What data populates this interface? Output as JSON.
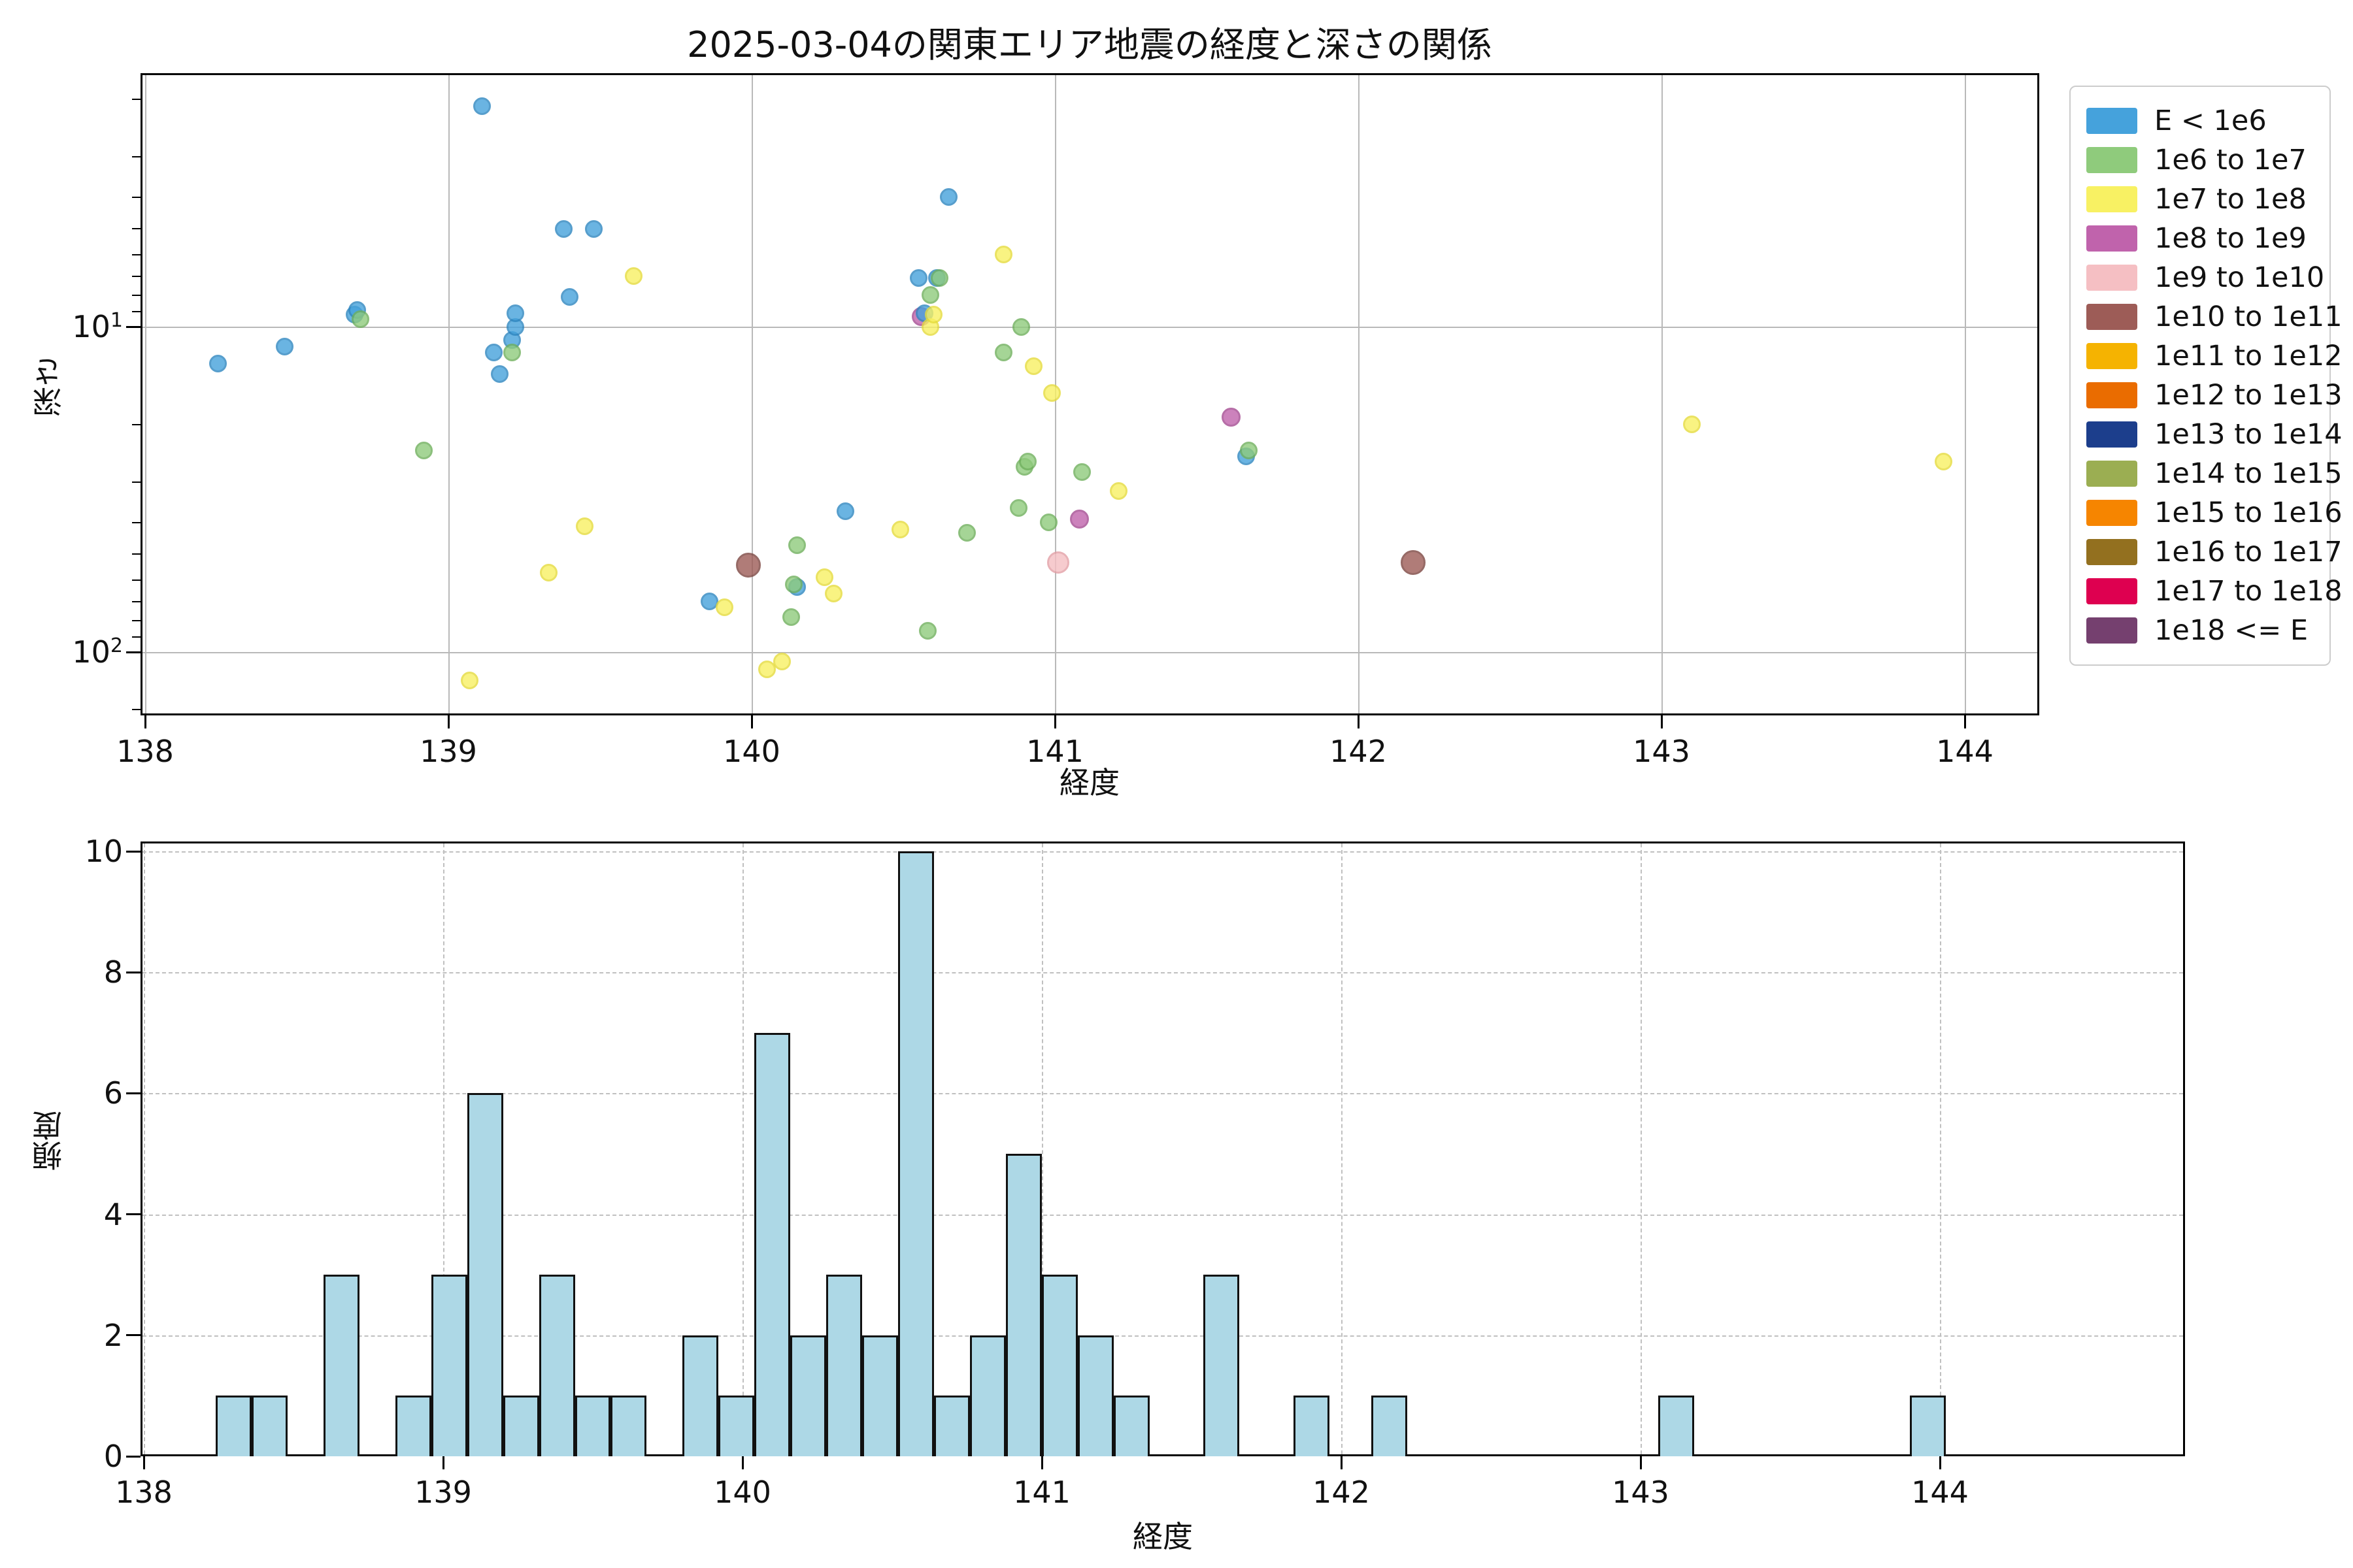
{
  "title": "2025-03-04の関東エリア地震の経度と深さの関係",
  "chart_data": [
    {
      "type": "scatter",
      "title": "2025-03-04の関東エリア地震の経度と深さの関係",
      "xlabel": "経度",
      "ylabel": "深さ",
      "xlim": [
        137.98,
        144.25
      ],
      "ylim_depth_log_inverted": [
        1.66,
        160
      ],
      "xticks": [
        138,
        139,
        140,
        141,
        142,
        143,
        144
      ],
      "yticks": [
        {
          "base": "10",
          "exp": "1",
          "value": 10
        },
        {
          "base": "10",
          "exp": "2",
          "value": 100
        }
      ],
      "grid": "solid",
      "legend_position": "outside-right",
      "series": [
        {
          "name": "E < 1e6",
          "color": "#45A2DC",
          "edge": "#2E86C0",
          "size": 27,
          "points": [
            [
              138.24,
              13
            ],
            [
              138.46,
              11.5
            ],
            [
              138.69,
              9.2
            ],
            [
              138.7,
              8.9
            ],
            [
              139.11,
              2.1
            ],
            [
              139.15,
              12
            ],
            [
              139.17,
              14
            ],
            [
              139.21,
              11
            ],
            [
              139.22,
              10
            ],
            [
              139.22,
              9.1
            ],
            [
              139.38,
              5.0
            ],
            [
              139.4,
              8.1
            ],
            [
              139.48,
              5.0
            ],
            [
              139.86,
              70
            ],
            [
              140.15,
              63
            ],
            [
              140.31,
              37
            ],
            [
              140.55,
              7.1
            ],
            [
              140.57,
              9.1
            ],
            [
              140.61,
              7.1
            ],
            [
              140.65,
              4.0
            ],
            [
              141.63,
              25
            ]
          ]
        },
        {
          "name": "1e6 to 1e7",
          "color": "#8FCB7C",
          "edge": "#6FB05C",
          "size": 27,
          "points": [
            [
              138.71,
              9.5
            ],
            [
              138.92,
              24
            ],
            [
              139.21,
              12
            ],
            [
              140.13,
              78
            ],
            [
              140.14,
              62
            ],
            [
              140.15,
              47
            ],
            [
              140.58,
              86
            ],
            [
              140.59,
              8.0
            ],
            [
              140.62,
              7.1
            ],
            [
              140.71,
              43
            ],
            [
              140.83,
              12
            ],
            [
              140.88,
              36
            ],
            [
              140.89,
              10
            ],
            [
              140.9,
              27
            ],
            [
              140.91,
              26
            ],
            [
              140.98,
              40
            ],
            [
              141.09,
              28
            ],
            [
              141.64,
              24
            ]
          ]
        },
        {
          "name": "1e7 to 1e8",
          "color": "#F8F163",
          "edge": "#E6DC3C",
          "size": 27,
          "points": [
            [
              139.07,
              122
            ],
            [
              139.33,
              57
            ],
            [
              139.45,
              41
            ],
            [
              139.61,
              7.0
            ],
            [
              139.91,
              73
            ],
            [
              140.05,
              113
            ],
            [
              140.1,
              107
            ],
            [
              140.24,
              59
            ],
            [
              140.27,
              66
            ],
            [
              140.49,
              42
            ],
            [
              140.59,
              10.0
            ],
            [
              140.6,
              9.2
            ],
            [
              140.83,
              6.0
            ],
            [
              140.93,
              13.2
            ],
            [
              140.99,
              16
            ],
            [
              141.21,
              32
            ],
            [
              143.1,
              20
            ],
            [
              143.93,
              26
            ]
          ]
        },
        {
          "name": "1e8 to 1e9",
          "color": "#C063AC",
          "edge": "#A54B92",
          "size": 29,
          "points": [
            [
              140.56,
              9.3
            ],
            [
              141.08,
              39
            ],
            [
              141.58,
              19
            ]
          ]
        },
        {
          "name": "1e9 to 1e10",
          "color": "#F5BFC3",
          "edge": "#E3A0A6",
          "size": 34,
          "points": [
            [
              141.01,
              53
            ]
          ]
        },
        {
          "name": "1e10 to 1e11",
          "color": "#9D5C57",
          "edge": "#7C4540",
          "size": 38,
          "points": [
            [
              139.99,
              54
            ],
            [
              142.18,
              53
            ]
          ]
        },
        {
          "name": "1e11 to 1e12",
          "color": "#F5B301",
          "edge": "#D89C00",
          "size": 27,
          "points": []
        },
        {
          "name": "1e12 to 1e13",
          "color": "#EA6C00",
          "edge": "#C85C00",
          "size": 27,
          "points": []
        },
        {
          "name": "1e13 to 1e14",
          "color": "#1C3E8C",
          "edge": "#142E6B",
          "size": 27,
          "points": []
        },
        {
          "name": "1e14 to 1e15",
          "color": "#9BAE52",
          "edge": "#7F913E",
          "size": 27,
          "points": []
        },
        {
          "name": "1e15 to 1e16",
          "color": "#F68500",
          "edge": "#D07000",
          "size": 27,
          "points": []
        },
        {
          "name": "1e16 to 1e17",
          "color": "#93701F",
          "edge": "#755816",
          "size": 27,
          "points": []
        },
        {
          "name": "1e17 to 1e18",
          "color": "#DE0050",
          "edge": "#B30040",
          "size": 27,
          "points": []
        },
        {
          "name": "1e18 <= E",
          "color": "#75406F",
          "edge": "#5C3057",
          "size": 27,
          "points": []
        }
      ]
    },
    {
      "type": "bar",
      "xlabel": "経度",
      "ylabel": "頻度",
      "xlim": [
        137.99,
        144.82
      ],
      "ylim": [
        0,
        10.2
      ],
      "xticks": [
        138,
        139,
        140,
        141,
        142,
        143,
        144
      ],
      "yticks": [
        0,
        2,
        4,
        6,
        8,
        10
      ],
      "grid": "dashed",
      "bar_fill": "#ADD8E6",
      "bar_edge": "#111111",
      "bin_width": 0.12,
      "bars": [
        {
          "lon": 138.24,
          "count": 1
        },
        {
          "lon": 138.36,
          "count": 1
        },
        {
          "lon": 138.6,
          "count": 3
        },
        {
          "lon": 138.84,
          "count": 1
        },
        {
          "lon": 138.96,
          "count": 3
        },
        {
          "lon": 139.08,
          "count": 6
        },
        {
          "lon": 139.2,
          "count": 1
        },
        {
          "lon": 139.32,
          "count": 3
        },
        {
          "lon": 139.44,
          "count": 1
        },
        {
          "lon": 139.56,
          "count": 1
        },
        {
          "lon": 139.8,
          "count": 2
        },
        {
          "lon": 139.92,
          "count": 1
        },
        {
          "lon": 140.04,
          "count": 7
        },
        {
          "lon": 140.16,
          "count": 2
        },
        {
          "lon": 140.28,
          "count": 3
        },
        {
          "lon": 140.4,
          "count": 2
        },
        {
          "lon": 140.52,
          "count": 10
        },
        {
          "lon": 140.64,
          "count": 1
        },
        {
          "lon": 140.76,
          "count": 2
        },
        {
          "lon": 140.88,
          "count": 5
        },
        {
          "lon": 141.0,
          "count": 3
        },
        {
          "lon": 141.12,
          "count": 2
        },
        {
          "lon": 141.24,
          "count": 1
        },
        {
          "lon": 141.54,
          "count": 3
        },
        {
          "lon": 141.84,
          "count": 1
        },
        {
          "lon": 142.1,
          "count": 1
        },
        {
          "lon": 143.06,
          "count": 1
        },
        {
          "lon": 143.9,
          "count": 1
        }
      ]
    }
  ]
}
